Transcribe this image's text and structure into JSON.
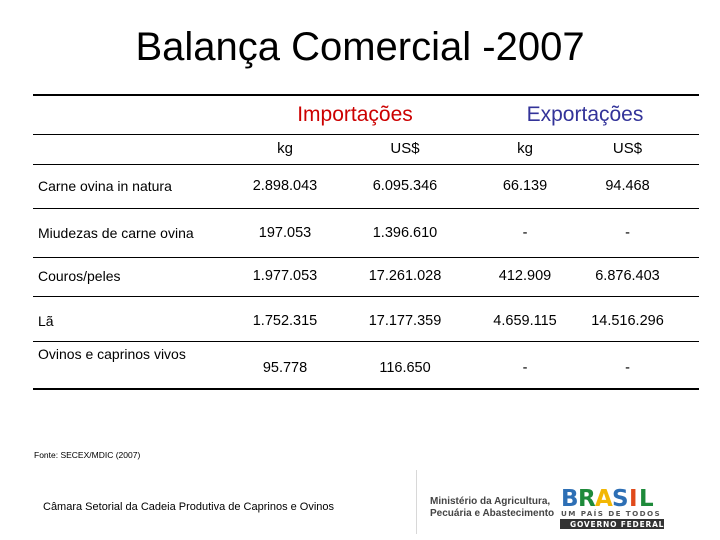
{
  "title": "Balança Comercial -2007",
  "table": {
    "groups": {
      "importacoes": "Importações",
      "exportacoes": "Exportações"
    },
    "units": [
      "kg",
      "US$",
      "kg",
      "US$"
    ],
    "rows": [
      {
        "label": "Carne ovina in natura",
        "imp_kg": "2.898.043",
        "imp_usd": "6.095.346",
        "exp_kg": "66.139",
        "exp_usd": "94.468"
      },
      {
        "label": "Miudezas de carne ovina",
        "imp_kg": "197.053",
        "imp_usd": "1.396.610",
        "exp_kg": "-",
        "exp_usd": "-"
      },
      {
        "label": "Couros/peles",
        "imp_kg": "1.977.053",
        "imp_usd": "17.261.028",
        "exp_kg": "412.909",
        "exp_usd": "6.876.403"
      },
      {
        "label": "Lã",
        "imp_kg": "1.752.315",
        "imp_usd": "17.177.359",
        "exp_kg": "4.659.115",
        "exp_usd": "14.516.296"
      },
      {
        "label": "Ovinos e caprinos vivos",
        "imp_kg": "95.778",
        "imp_usd": "116.650",
        "exp_kg": "-",
        "exp_usd": "-"
      }
    ]
  },
  "source": "Fonte: SECEX/MDIC (2007)",
  "footer": "Câmara Setorial da Cadeia Produtiva de Caprinos e Ovinos",
  "logos": {
    "ministry_text": "Ministério da Agricultura, Pecuária e Abastecimento",
    "brasil_word": "BRASIL",
    "brasil_tagline": "UM PAÍS DE TODOS",
    "brasil_gov": "GOVERNO FEDERAL"
  },
  "colors": {
    "importacoes": "#cc0000",
    "exportacoes": "#333399"
  }
}
